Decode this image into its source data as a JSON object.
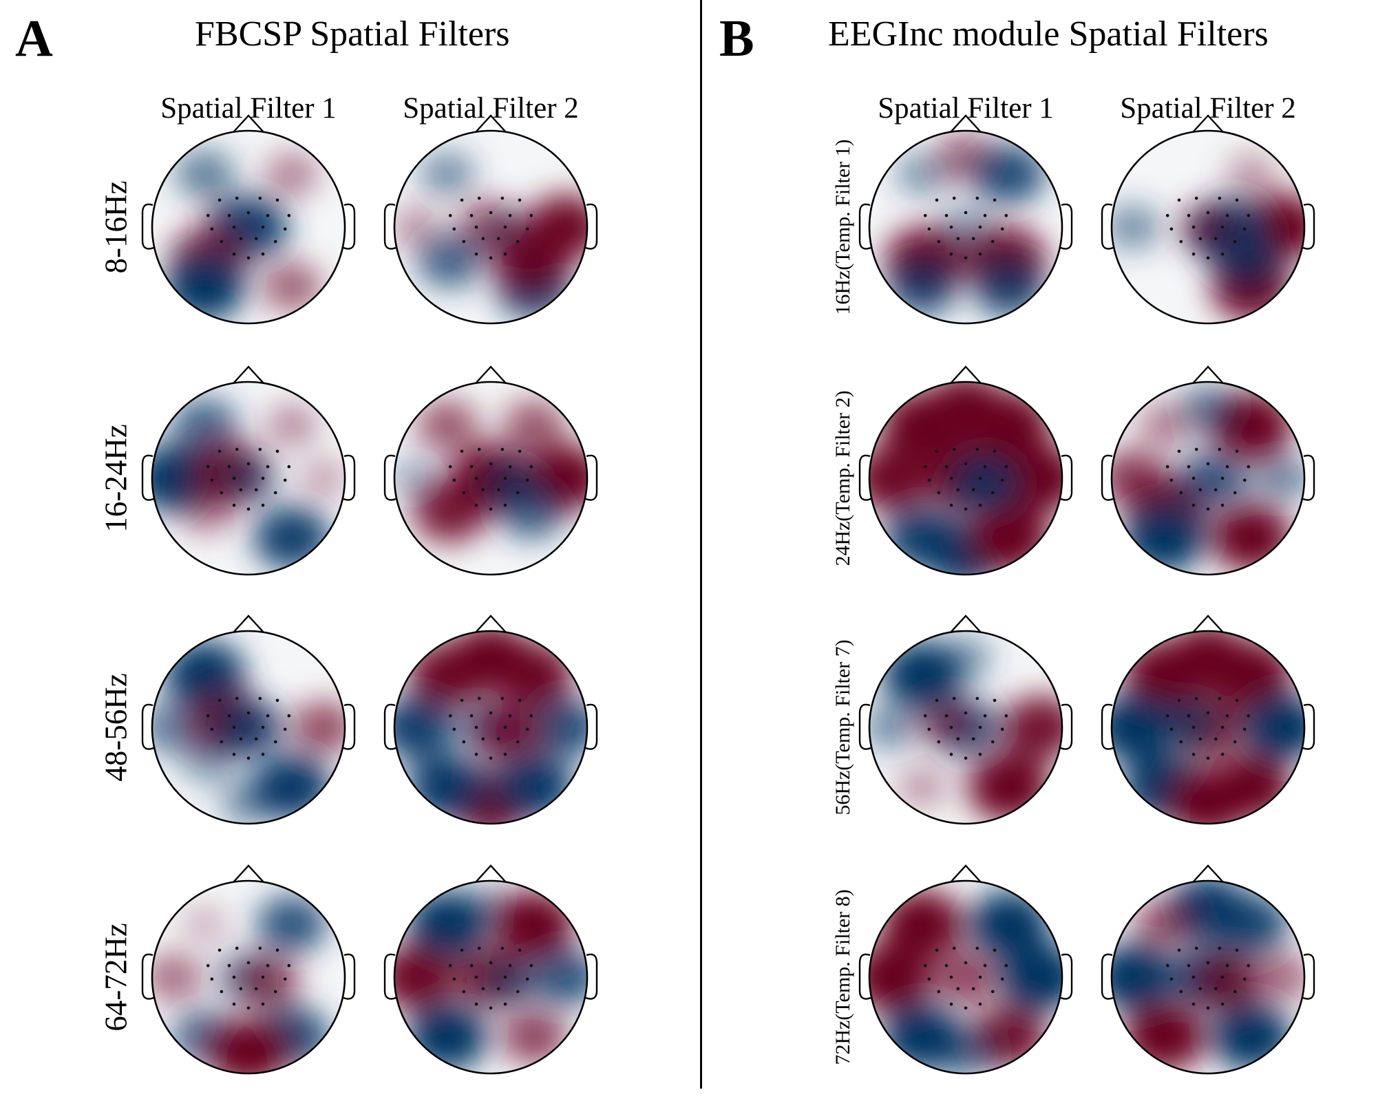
{
  "panels": [
    {
      "letter": "A",
      "title": "FBCSP Spatial Filters",
      "columns": [
        "Spatial Filter 1",
        "Spatial Filter 2"
      ],
      "rows": [
        "8-16Hz",
        "16-24Hz",
        "48-56Hz",
        "64-72Hz"
      ],
      "maps": [
        [
          [
            [
              "n",
              "fl",
              0.45
            ],
            [
              "p",
              "fr",
              0.3
            ],
            [
              "p",
              "cl",
              0.3
            ],
            [
              "n",
              "cc",
              0.85
            ],
            [
              "p",
              "pl",
              0.85
            ],
            [
              "n",
              "ol",
              0.95
            ],
            [
              "p",
              "or",
              0.45
            ],
            [
              "n",
              "cr",
              0.15
            ]
          ],
          [
            [
              "n",
              "fl",
              0.35
            ],
            [
              "p",
              "ll",
              0.2
            ],
            [
              "p",
              "cc",
              0.55
            ],
            [
              "n",
              "cr",
              0.25
            ],
            [
              "n",
              "pl",
              0.6
            ],
            [
              "n",
              "or",
              0.85
            ],
            [
              "p",
              "rr",
              0.9
            ],
            [
              "p",
              "pr",
              0.85
            ]
          ]
        ],
        [
          [
            [
              "n",
              "ll",
              0.95
            ],
            [
              "n",
              "fl",
              0.6
            ],
            [
              "p",
              "fr",
              0.25
            ],
            [
              "p",
              "cl",
              0.85
            ],
            [
              "n",
              "cc",
              0.4
            ],
            [
              "n",
              "or",
              0.85
            ],
            [
              "p",
              "pl",
              0.3
            ],
            [
              "p",
              "rr",
              0.15
            ]
          ],
          [
            [
              "p",
              "fl",
              0.5
            ],
            [
              "p",
              "fr",
              0.5
            ],
            [
              "p",
              "rr",
              0.95
            ],
            [
              "p",
              "cc",
              1.0
            ],
            [
              "n",
              "ll",
              0.2
            ],
            [
              "p",
              "pl",
              0.8
            ],
            [
              "n",
              "pr",
              0.6
            ],
            [
              "n",
              "cr",
              0.45
            ]
          ]
        ],
        [
          [
            [
              "n",
              "fl",
              0.95
            ],
            [
              "n",
              "ll",
              0.5
            ],
            [
              "p",
              "rr",
              0.55
            ],
            [
              "p",
              "cl",
              0.85
            ],
            [
              "n",
              "cc",
              0.7
            ],
            [
              "n",
              "or",
              0.9
            ],
            [
              "n",
              "pl",
              0.3
            ],
            [
              "n",
              "oo",
              0.35
            ]
          ],
          [
            [
              "p",
              "ff",
              1.0
            ],
            [
              "p",
              "fl",
              0.9
            ],
            [
              "p",
              "fr",
              0.9
            ],
            [
              "n",
              "ll",
              0.85
            ],
            [
              "n",
              "rr",
              0.75
            ],
            [
              "p",
              "oo",
              1.0
            ],
            [
              "n",
              "ol",
              0.9
            ],
            [
              "n",
              "or",
              0.9
            ],
            [
              "n",
              "cc",
              0.6
            ],
            [
              "p",
              "cr",
              0.7
            ]
          ]
        ],
        [
          [
            [
              "n",
              "fr",
              0.7
            ],
            [
              "p",
              "ll",
              0.4
            ],
            [
              "n",
              "ol",
              0.6
            ],
            [
              "n",
              "or",
              0.8
            ],
            [
              "p",
              "oo",
              0.95
            ],
            [
              "n",
              "cc",
              0.5
            ],
            [
              "p",
              "cr",
              0.55
            ],
            [
              "p",
              "fl",
              0.08
            ]
          ],
          [
            [
              "n",
              "fl",
              0.95
            ],
            [
              "n",
              "ff",
              0.3
            ],
            [
              "p",
              "fr",
              0.95
            ],
            [
              "p",
              "ll",
              0.9
            ],
            [
              "n",
              "rr",
              0.7
            ],
            [
              "n",
              "ol",
              0.95
            ],
            [
              "p",
              "or",
              0.6
            ],
            [
              "p",
              "cc",
              0.8
            ],
            [
              "n",
              "cr",
              0.4
            ]
          ]
        ]
      ]
    },
    {
      "letter": "B",
      "title": "EEGInc module Spatial Filters",
      "columns": [
        "Spatial Filter 1",
        "Spatial Filter 2"
      ],
      "rows": [
        "16Hz(Temp. Filter 1)",
        "24Hz(Temp. Filter 2)",
        "56Hz(Temp. Filter 7)",
        "72Hz(Temp. Filter 8)"
      ],
      "maps": [
        [
          [
            [
              "p",
              "ff",
              0.45
            ],
            [
              "n",
              "fr",
              0.75
            ],
            [
              "n",
              "fl",
              0.3
            ],
            [
              "p",
              "pl",
              0.95
            ],
            [
              "p",
              "pr",
              0.95
            ],
            [
              "n",
              "ol",
              0.7
            ],
            [
              "n",
              "or",
              0.75
            ],
            [
              "n",
              "cc",
              0.3
            ]
          ],
          [
            [
              "p",
              "fr",
              0.2
            ],
            [
              "p",
              "rr",
              0.95
            ],
            [
              "n",
              "ll",
              0.35
            ],
            [
              "n",
              "cr",
              0.95
            ],
            [
              "p",
              "or",
              0.95
            ],
            [
              "n",
              "pr",
              0.6
            ],
            [
              "p",
              "cc",
              0.4
            ]
          ]
        ],
        [
          [
            [
              "p",
              "ff",
              1.0
            ],
            [
              "p",
              "fl",
              1.0
            ],
            [
              "p",
              "fr",
              1.0
            ],
            [
              "p",
              "ll",
              0.9
            ],
            [
              "p",
              "rr",
              1.0
            ],
            [
              "n",
              "ol",
              0.85
            ],
            [
              "n",
              "oo",
              0.95
            ],
            [
              "p",
              "or",
              1.0
            ],
            [
              "p",
              "cc",
              0.95
            ],
            [
              "n",
              "cr",
              0.7
            ]
          ],
          [
            [
              "p",
              "fr",
              1.0
            ],
            [
              "n",
              "ff",
              0.45
            ],
            [
              "p",
              "fl",
              0.3
            ],
            [
              "p",
              "ll",
              0.65
            ],
            [
              "p",
              "pl",
              0.95
            ],
            [
              "n",
              "ol",
              1.0
            ],
            [
              "p",
              "or",
              0.95
            ],
            [
              "n",
              "cc",
              0.6
            ],
            [
              "n",
              "rr",
              0.4
            ],
            [
              "n",
              "cr",
              0.3
            ]
          ]
        ],
        [
          [
            [
              "n",
              "fl",
              0.95
            ],
            [
              "n",
              "ff",
              0.3
            ],
            [
              "p",
              "rr",
              0.85
            ],
            [
              "p",
              "or",
              1.0
            ],
            [
              "p",
              "ol",
              0.2
            ],
            [
              "n",
              "cc",
              0.7
            ],
            [
              "p",
              "cl",
              0.4
            ],
            [
              "n",
              "ll",
              0.35
            ]
          ],
          [
            [
              "p",
              "ff",
              1.0
            ],
            [
              "p",
              "fl",
              1.0
            ],
            [
              "p",
              "fr",
              1.0
            ],
            [
              "n",
              "ll",
              0.95
            ],
            [
              "n",
              "rr",
              0.95
            ],
            [
              "n",
              "ol",
              1.0
            ],
            [
              "p",
              "oo",
              1.0
            ],
            [
              "p",
              "or",
              0.95
            ],
            [
              "p",
              "cc",
              0.8
            ],
            [
              "n",
              "cl",
              0.5
            ]
          ]
        ],
        [
          [
            [
              "p",
              "fl",
              1.0
            ],
            [
              "p",
              "ll",
              1.0
            ],
            [
              "n",
              "fr",
              0.95
            ],
            [
              "n",
              "rr",
              1.0
            ],
            [
              "n",
              "ol",
              0.95
            ],
            [
              "p",
              "or",
              0.85
            ],
            [
              "n",
              "oo",
              0.5
            ],
            [
              "p",
              "cc",
              0.6
            ]
          ],
          [
            [
              "n",
              "ff",
              0.9
            ],
            [
              "p",
              "fl",
              0.5
            ],
            [
              "n",
              "fr",
              0.8
            ],
            [
              "n",
              "ll",
              0.95
            ],
            [
              "p",
              "rr",
              0.4
            ],
            [
              "p",
              "ol",
              1.0
            ],
            [
              "n",
              "or",
              0.95
            ],
            [
              "n",
              "cc",
              0.85
            ],
            [
              "p",
              "cr",
              0.7
            ]
          ]
        ]
      ]
    }
  ]
}
